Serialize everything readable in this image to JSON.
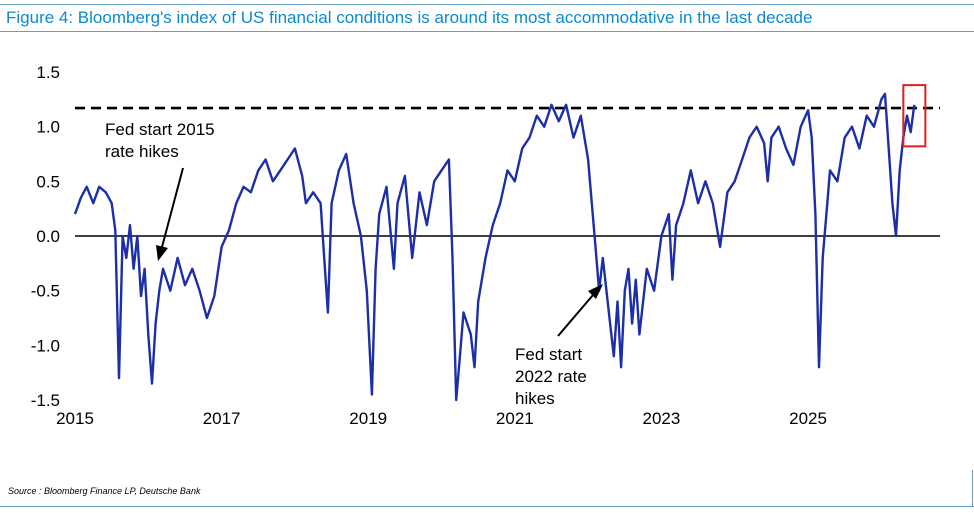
{
  "figure": {
    "title": "Figure 4: Bloomberg's index of US financial conditions is around its most accommodative in the last decade",
    "source": "Source : Bloomberg Finance LP, Deutsche Bank"
  },
  "colors": {
    "series": "#1c2fa8",
    "title": "#0a8ad0",
    "highlight_box": "#e02020"
  },
  "chart_data": {
    "type": "line",
    "title": "",
    "xlabel": "",
    "ylabel": "",
    "xlim": [
      2015.0,
      2026.8
    ],
    "ylim": [
      -1.5,
      1.5
    ],
    "x_ticks": [
      "2015",
      "2017",
      "2019",
      "2021",
      "2023",
      "2025"
    ],
    "y_ticks": [
      "1.5",
      "1.0",
      "0.5",
      "0.0",
      "-0.5",
      "-1.0",
      "-1.5"
    ],
    "grid": false,
    "reference_line": {
      "y": 1.17,
      "style": "dashed"
    },
    "annotations": [
      {
        "text": [
          "Fed start 2015",
          "rate hikes"
        ]
      },
      {
        "text": [
          "Fed start",
          "2022 rate",
          "hikes"
        ]
      }
    ],
    "series": [
      {
        "values": [
          [
            2015.0,
            0.2
          ],
          [
            2015.08,
            0.35
          ],
          [
            2015.16,
            0.45
          ],
          [
            2015.25,
            0.3
          ],
          [
            2015.33,
            0.45
          ],
          [
            2015.42,
            0.4
          ],
          [
            2015.5,
            0.3
          ],
          [
            2015.55,
            0.05
          ],
          [
            2015.6,
            -1.3
          ],
          [
            2015.65,
            0.0
          ],
          [
            2015.7,
            -0.2
          ],
          [
            2015.75,
            0.1
          ],
          [
            2015.8,
            -0.3
          ],
          [
            2015.85,
            0.0
          ],
          [
            2015.9,
            -0.55
          ],
          [
            2015.95,
            -0.3
          ],
          [
            2016.0,
            -0.9
          ],
          [
            2016.05,
            -1.35
          ],
          [
            2016.1,
            -0.8
          ],
          [
            2016.15,
            -0.5
          ],
          [
            2016.2,
            -0.3
          ],
          [
            2016.3,
            -0.5
          ],
          [
            2016.4,
            -0.2
          ],
          [
            2016.5,
            -0.45
          ],
          [
            2016.6,
            -0.3
          ],
          [
            2016.7,
            -0.5
          ],
          [
            2016.8,
            -0.75
          ],
          [
            2016.9,
            -0.55
          ],
          [
            2017.0,
            -0.1
          ],
          [
            2017.1,
            0.05
          ],
          [
            2017.2,
            0.3
          ],
          [
            2017.3,
            0.45
          ],
          [
            2017.4,
            0.4
          ],
          [
            2017.5,
            0.6
          ],
          [
            2017.6,
            0.7
          ],
          [
            2017.7,
            0.5
          ],
          [
            2017.8,
            0.6
          ],
          [
            2017.9,
            0.7
          ],
          [
            2018.0,
            0.8
          ],
          [
            2018.1,
            0.55
          ],
          [
            2018.15,
            0.3
          ],
          [
            2018.25,
            0.4
          ],
          [
            2018.35,
            0.3
          ],
          [
            2018.4,
            -0.2
          ],
          [
            2018.45,
            -0.7
          ],
          [
            2018.5,
            0.3
          ],
          [
            2018.6,
            0.6
          ],
          [
            2018.7,
            0.75
          ],
          [
            2018.8,
            0.3
          ],
          [
            2018.9,
            0.0
          ],
          [
            2018.98,
            -0.5
          ],
          [
            2019.05,
            -1.45
          ],
          [
            2019.1,
            -0.3
          ],
          [
            2019.15,
            0.2
          ],
          [
            2019.25,
            0.45
          ],
          [
            2019.35,
            -0.3
          ],
          [
            2019.4,
            0.3
          ],
          [
            2019.5,
            0.55
          ],
          [
            2019.6,
            -0.2
          ],
          [
            2019.7,
            0.4
          ],
          [
            2019.8,
            0.1
          ],
          [
            2019.9,
            0.5
          ],
          [
            2020.0,
            0.6
          ],
          [
            2020.1,
            0.7
          ],
          [
            2020.15,
            -0.2
          ],
          [
            2020.2,
            -1.5
          ],
          [
            2020.25,
            -1.1
          ],
          [
            2020.3,
            -0.7
          ],
          [
            2020.4,
            -0.9
          ],
          [
            2020.45,
            -1.2
          ],
          [
            2020.5,
            -0.6
          ],
          [
            2020.6,
            -0.2
          ],
          [
            2020.7,
            0.1
          ],
          [
            2020.8,
            0.3
          ],
          [
            2020.9,
            0.6
          ],
          [
            2021.0,
            0.5
          ],
          [
            2021.1,
            0.8
          ],
          [
            2021.2,
            0.9
          ],
          [
            2021.3,
            1.1
          ],
          [
            2021.4,
            1.0
          ],
          [
            2021.5,
            1.2
          ],
          [
            2021.6,
            1.05
          ],
          [
            2021.7,
            1.2
          ],
          [
            2021.8,
            0.9
          ],
          [
            2021.9,
            1.1
          ],
          [
            2022.0,
            0.7
          ],
          [
            2022.05,
            0.3
          ],
          [
            2022.1,
            -0.1
          ],
          [
            2022.15,
            -0.5
          ],
          [
            2022.2,
            -0.2
          ],
          [
            2022.3,
            -0.8
          ],
          [
            2022.35,
            -1.1
          ],
          [
            2022.4,
            -0.6
          ],
          [
            2022.45,
            -1.2
          ],
          [
            2022.5,
            -0.5
          ],
          [
            2022.55,
            -0.3
          ],
          [
            2022.6,
            -0.8
          ],
          [
            2022.65,
            -0.4
          ],
          [
            2022.7,
            -0.9
          ],
          [
            2022.8,
            -0.3
          ],
          [
            2022.9,
            -0.5
          ],
          [
            2023.0,
            0.0
          ],
          [
            2023.1,
            0.2
          ],
          [
            2023.15,
            -0.4
          ],
          [
            2023.2,
            0.1
          ],
          [
            2023.3,
            0.3
          ],
          [
            2023.4,
            0.6
          ],
          [
            2023.5,
            0.3
          ],
          [
            2023.6,
            0.5
          ],
          [
            2023.7,
            0.3
          ],
          [
            2023.8,
            -0.1
          ],
          [
            2023.9,
            0.4
          ],
          [
            2024.0,
            0.5
          ],
          [
            2024.1,
            0.7
          ],
          [
            2024.2,
            0.9
          ],
          [
            2024.3,
            1.0
          ],
          [
            2024.4,
            0.85
          ],
          [
            2024.45,
            0.5
          ],
          [
            2024.5,
            0.9
          ],
          [
            2024.6,
            1.0
          ],
          [
            2024.7,
            0.8
          ],
          [
            2024.8,
            0.65
          ],
          [
            2024.9,
            1.0
          ],
          [
            2025.0,
            1.15
          ],
          [
            2025.05,
            0.9
          ],
          [
            2025.1,
            0.2
          ],
          [
            2025.15,
            -1.2
          ],
          [
            2025.2,
            -0.2
          ],
          [
            2025.25,
            0.2
          ],
          [
            2025.3,
            0.6
          ],
          [
            2025.4,
            0.5
          ],
          [
            2025.5,
            0.9
          ],
          [
            2025.6,
            1.0
          ],
          [
            2025.7,
            0.8
          ],
          [
            2025.8,
            1.1
          ],
          [
            2025.9,
            1.0
          ],
          [
            2026.0,
            1.25
          ],
          [
            2026.05,
            1.3
          ],
          [
            2026.1,
            0.8
          ],
          [
            2026.15,
            0.3
          ],
          [
            2026.2,
            0.0
          ],
          [
            2026.25,
            0.6
          ],
          [
            2026.3,
            0.9
          ],
          [
            2026.35,
            1.1
          ],
          [
            2026.4,
            0.95
          ],
          [
            2026.45,
            1.2
          ]
        ]
      }
    ]
  }
}
